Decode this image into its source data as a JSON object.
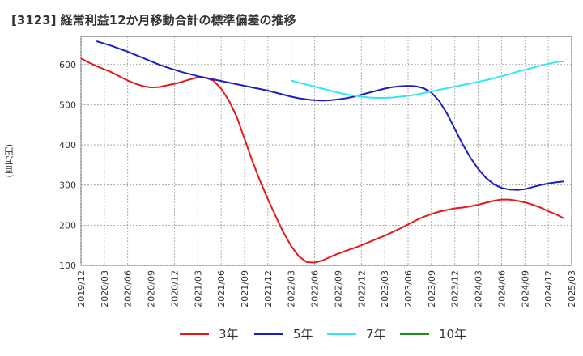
{
  "title": "[3123]  経常利益12か月移動合計の標準偏差の推移",
  "chart_data": {
    "type": "line",
    "ylabel": "(百万円)",
    "ylim": [
      100,
      670
    ],
    "yticks": [
      100,
      200,
      300,
      400,
      500,
      600
    ],
    "xticks": [
      "2019/12",
      "2020/03",
      "2020/06",
      "2020/09",
      "2020/12",
      "2021/03",
      "2021/06",
      "2021/09",
      "2021/12",
      "2022/03",
      "2022/06",
      "2022/09",
      "2022/12",
      "2023/03",
      "2023/06",
      "2023/09",
      "2023/12",
      "2024/03",
      "2024/06",
      "2024/09",
      "2024/12",
      "2025/03"
    ],
    "grid": true,
    "legend_position": "bottom",
    "series": [
      {
        "name": "3年",
        "color": "#e31a1c",
        "points": [
          [
            "2019/12",
            615
          ],
          [
            "2020/01",
            605
          ],
          [
            "2020/02",
            596
          ],
          [
            "2020/03",
            588
          ],
          [
            "2020/04",
            580
          ],
          [
            "2020/05",
            570
          ],
          [
            "2020/06",
            560
          ],
          [
            "2020/07",
            552
          ],
          [
            "2020/08",
            546
          ],
          [
            "2020/09",
            543
          ],
          [
            "2020/10",
            544
          ],
          [
            "2020/11",
            548
          ],
          [
            "2020/12",
            552
          ],
          [
            "2021/01",
            557
          ],
          [
            "2021/02",
            563
          ],
          [
            "2021/03",
            568
          ],
          [
            "2021/04",
            567
          ],
          [
            "2021/05",
            560
          ],
          [
            "2021/06",
            540
          ],
          [
            "2021/07",
            510
          ],
          [
            "2021/08",
            470
          ],
          [
            "2021/09",
            415
          ],
          [
            "2021/10",
            360
          ],
          [
            "2021/11",
            310
          ],
          [
            "2021/12",
            265
          ],
          [
            "2022/01",
            222
          ],
          [
            "2022/02",
            182
          ],
          [
            "2022/03",
            148
          ],
          [
            "2022/04",
            122
          ],
          [
            "2022/05",
            108
          ],
          [
            "2022/06",
            107
          ],
          [
            "2022/07",
            112
          ],
          [
            "2022/08",
            121
          ],
          [
            "2022/09",
            129
          ],
          [
            "2022/10",
            136
          ],
          [
            "2022/11",
            143
          ],
          [
            "2022/12",
            150
          ],
          [
            "2023/01",
            158
          ],
          [
            "2023/02",
            166
          ],
          [
            "2023/03",
            174
          ],
          [
            "2023/04",
            183
          ],
          [
            "2023/05",
            192
          ],
          [
            "2023/06",
            202
          ],
          [
            "2023/07",
            212
          ],
          [
            "2023/08",
            221
          ],
          [
            "2023/09",
            228
          ],
          [
            "2023/10",
            234
          ],
          [
            "2023/11",
            238
          ],
          [
            "2023/12",
            242
          ],
          [
            "2024/01",
            244
          ],
          [
            "2024/02",
            247
          ],
          [
            "2024/03",
            251
          ],
          [
            "2024/04",
            256
          ],
          [
            "2024/05",
            261
          ],
          [
            "2024/06",
            264
          ],
          [
            "2024/07",
            264
          ],
          [
            "2024/08",
            261
          ],
          [
            "2024/09",
            257
          ],
          [
            "2024/10",
            251
          ],
          [
            "2024/11",
            244
          ],
          [
            "2024/12",
            235
          ],
          [
            "2025/01",
            227
          ],
          [
            "2025/02",
            217
          ]
        ]
      },
      {
        "name": "5年",
        "color": "#1f1fbf",
        "points": [
          [
            "2020/02",
            658
          ],
          [
            "2020/03",
            652
          ],
          [
            "2020/04",
            646
          ],
          [
            "2020/05",
            639
          ],
          [
            "2020/06",
            632
          ],
          [
            "2020/07",
            624
          ],
          [
            "2020/08",
            616
          ],
          [
            "2020/09",
            608
          ],
          [
            "2020/10",
            600
          ],
          [
            "2020/11",
            593
          ],
          [
            "2020/12",
            587
          ],
          [
            "2021/01",
            581
          ],
          [
            "2021/02",
            576
          ],
          [
            "2021/03",
            571
          ],
          [
            "2021/04",
            567
          ],
          [
            "2021/05",
            563
          ],
          [
            "2021/06",
            559
          ],
          [
            "2021/07",
            555
          ],
          [
            "2021/08",
            551
          ],
          [
            "2021/09",
            547
          ],
          [
            "2021/10",
            543
          ],
          [
            "2021/11",
            539
          ],
          [
            "2021/12",
            535
          ],
          [
            "2022/01",
            530
          ],
          [
            "2022/02",
            525
          ],
          [
            "2022/03",
            520
          ],
          [
            "2022/04",
            516
          ],
          [
            "2022/05",
            513
          ],
          [
            "2022/06",
            511
          ],
          [
            "2022/07",
            510
          ],
          [
            "2022/08",
            511
          ],
          [
            "2022/09",
            513
          ],
          [
            "2022/10",
            516
          ],
          [
            "2022/11",
            520
          ],
          [
            "2022/12",
            525
          ],
          [
            "2023/01",
            530
          ],
          [
            "2023/02",
            535
          ],
          [
            "2023/03",
            540
          ],
          [
            "2023/04",
            544
          ],
          [
            "2023/05",
            546
          ],
          [
            "2023/06",
            547
          ],
          [
            "2023/07",
            546
          ],
          [
            "2023/08",
            541
          ],
          [
            "2023/09",
            530
          ],
          [
            "2023/10",
            509
          ],
          [
            "2023/11",
            478
          ],
          [
            "2023/12",
            440
          ],
          [
            "2024/01",
            402
          ],
          [
            "2024/02",
            368
          ],
          [
            "2024/03",
            340
          ],
          [
            "2024/04",
            318
          ],
          [
            "2024/05",
            302
          ],
          [
            "2024/06",
            293
          ],
          [
            "2024/07",
            289
          ],
          [
            "2024/08",
            288
          ],
          [
            "2024/09",
            290
          ],
          [
            "2024/10",
            295
          ],
          [
            "2024/11",
            300
          ],
          [
            "2024/12",
            304
          ],
          [
            "2025/01",
            307
          ],
          [
            "2025/02",
            309
          ]
        ]
      },
      {
        "name": "7年",
        "color": "#33e6f0",
        "points": [
          [
            "2022/03",
            560
          ],
          [
            "2022/04",
            555
          ],
          [
            "2022/05",
            550
          ],
          [
            "2022/06",
            545
          ],
          [
            "2022/07",
            540
          ],
          [
            "2022/08",
            535
          ],
          [
            "2022/09",
            530
          ],
          [
            "2022/10",
            526
          ],
          [
            "2022/11",
            523
          ],
          [
            "2022/12",
            520
          ],
          [
            "2023/01",
            518
          ],
          [
            "2023/02",
            517
          ],
          [
            "2023/03",
            517
          ],
          [
            "2023/04",
            518
          ],
          [
            "2023/05",
            520
          ],
          [
            "2023/06",
            522
          ],
          [
            "2023/07",
            525
          ],
          [
            "2023/08",
            529
          ],
          [
            "2023/09",
            533
          ],
          [
            "2023/10",
            537
          ],
          [
            "2023/11",
            541
          ],
          [
            "2023/12",
            545
          ],
          [
            "2024/01",
            549
          ],
          [
            "2024/02",
            553
          ],
          [
            "2024/03",
            557
          ],
          [
            "2024/04",
            561
          ],
          [
            "2024/05",
            566
          ],
          [
            "2024/06",
            571
          ],
          [
            "2024/07",
            576
          ],
          [
            "2024/08",
            582
          ],
          [
            "2024/09",
            587
          ],
          [
            "2024/10",
            592
          ],
          [
            "2024/11",
            597
          ],
          [
            "2024/12",
            602
          ],
          [
            "2025/01",
            606
          ],
          [
            "2025/02",
            608
          ]
        ]
      },
      {
        "name": "10年",
        "color": "#1a8f1a",
        "points": []
      }
    ]
  }
}
